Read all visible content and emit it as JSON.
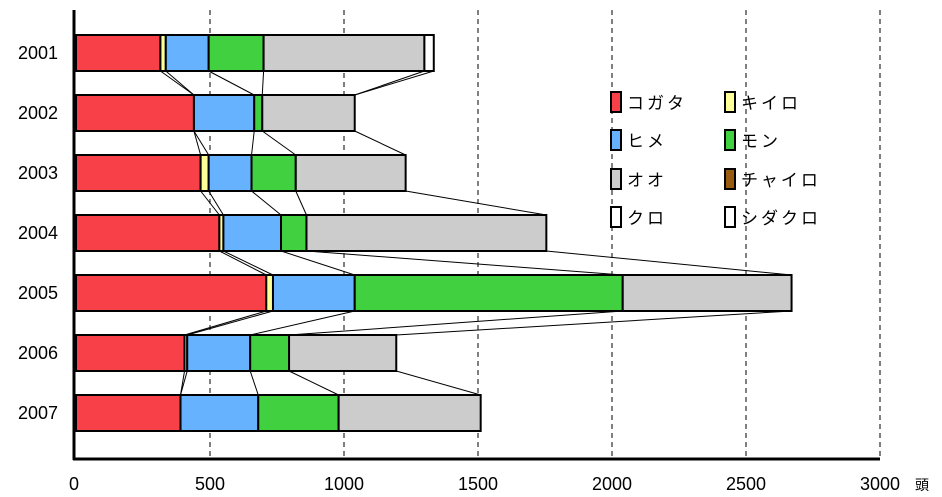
{
  "chart_data": {
    "type": "bar",
    "orientation": "horizontal",
    "stacked": true,
    "connector_lines": true,
    "categories": [
      "2001",
      "2002",
      "2003",
      "2004",
      "2005",
      "2006",
      "2007"
    ],
    "series": [
      {
        "name": "コガタ",
        "color": "#f84048",
        "values": [
          315,
          440,
          465,
          535,
          710,
          405,
          390
        ]
      },
      {
        "name": "キイロ",
        "color": "#ffff99",
        "values": [
          20,
          0,
          30,
          15,
          25,
          10,
          0
        ]
      },
      {
        "name": "ヒメ",
        "color": "#66b2ff",
        "values": [
          160,
          225,
          160,
          215,
          305,
          235,
          290
        ]
      },
      {
        "name": "モン",
        "color": "#40d040",
        "values": [
          205,
          30,
          165,
          95,
          1000,
          145,
          300
        ]
      },
      {
        "name": "オオ",
        "color": "#cccccc",
        "values": [
          600,
          345,
          410,
          895,
          630,
          400,
          530
        ]
      },
      {
        "name": "チャイロ",
        "color": "#9a5a10",
        "values": [
          0,
          0,
          0,
          0,
          0,
          0,
          0
        ]
      },
      {
        "name": "クロ",
        "color": "#ffffff",
        "values": [
          35,
          0,
          0,
          0,
          0,
          0,
          0
        ]
      },
      {
        "name": "シダクロ",
        "color": "#ffffff",
        "values": [
          0,
          0,
          0,
          0,
          0,
          0,
          0
        ]
      }
    ],
    "xlim": [
      0,
      3000
    ],
    "xticks": [
      "0",
      "500",
      "1000",
      "1500",
      "2000",
      "2500",
      "3000"
    ],
    "xtick_values": [
      0,
      500,
      1000,
      1500,
      2000,
      2500,
      3000
    ],
    "x_unit": "頭",
    "legend_position": "right",
    "grid": "vertical dashed"
  }
}
